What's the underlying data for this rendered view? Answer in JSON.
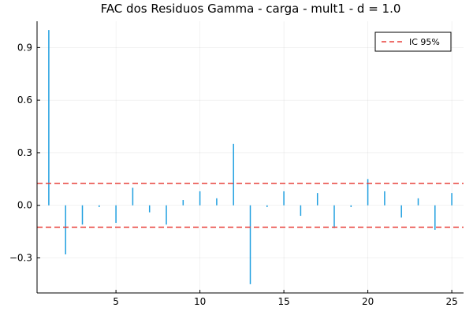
{
  "chart_data": {
    "type": "bar",
    "title": "FAC dos Residuos  Gamma - carga - mult1 - d = 1.0",
    "xlabel": "",
    "ylabel": "",
    "x": [
      1,
      2,
      3,
      4,
      5,
      6,
      7,
      8,
      9,
      10,
      11,
      12,
      13,
      14,
      15,
      16,
      17,
      18,
      19,
      20,
      21,
      22,
      23,
      24,
      25
    ],
    "values": [
      1.0,
      -0.28,
      -0.11,
      -0.01,
      -0.1,
      0.1,
      -0.04,
      -0.11,
      0.03,
      0.08,
      0.04,
      0.35,
      -0.45,
      -0.01,
      0.08,
      -0.06,
      0.07,
      -0.13,
      -0.01,
      0.15,
      0.08,
      -0.07,
      0.04,
      -0.14,
      0.07
    ],
    "xlim": [
      0.3,
      25.7
    ],
    "ylim": [
      -0.5,
      1.05
    ],
    "xticks": [
      5,
      10,
      15,
      20,
      25
    ],
    "yticks": [
      -0.3,
      0.0,
      0.3,
      0.6,
      0.9
    ],
    "xtick_labels": [
      "5",
      "10",
      "15",
      "20",
      "25"
    ],
    "ytick_labels": [
      "−0.3",
      "0.0",
      "0.3",
      "0.6",
      "0.9"
    ],
    "confidence_band": 0.125,
    "legend": {
      "entries": [
        "IC 95%"
      ],
      "placement": "top-right"
    },
    "grid": true,
    "colors": {
      "bars": "#1f9fe0",
      "ci": "#e8413b"
    }
  }
}
